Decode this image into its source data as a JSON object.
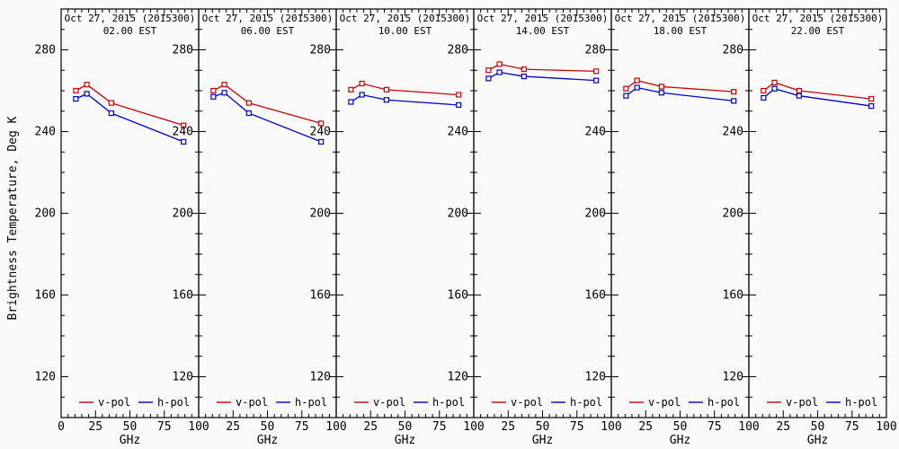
{
  "figure": {
    "background": "#fafafa",
    "axis_color": "#000000",
    "y_axis_title": "Brightness Temperature, Deg K",
    "x_axis_title": "GHz",
    "legend": {
      "position": "bottom-inside",
      "items": [
        {
          "name": "v-pol",
          "label": "v-pol",
          "color": "#cc0000"
        },
        {
          "name": "h-pol",
          "label": "h-pol",
          "color": "#0000cc"
        }
      ]
    }
  },
  "chart_data": [
    {
      "type": "line",
      "title": "Oct 27, 2015 (2015300)",
      "subtitle": "02.00 EST",
      "xlabel": "GHz",
      "ylabel": "Brightness Temperature, Deg K",
      "x": [
        10.7,
        18.7,
        36.5,
        89
      ],
      "xlim": [
        0,
        100
      ],
      "ylim": [
        100,
        300
      ],
      "xticks": [
        0,
        25,
        50,
        75,
        100
      ],
      "yticks": [
        120,
        160,
        200,
        240,
        280
      ],
      "grid": false,
      "series": [
        {
          "name": "v-pol",
          "color": "#cc0000",
          "marker": "open-square",
          "values": [
            260,
            263,
            254,
            243
          ]
        },
        {
          "name": "h-pol",
          "color": "#0000cc",
          "marker": "open-square",
          "values": [
            256,
            258.5,
            249,
            235
          ]
        }
      ]
    },
    {
      "type": "line",
      "title": "Oct 27, 2015 (2015300)",
      "subtitle": "06.00 EST",
      "xlabel": "GHz",
      "ylabel": "Brightness Temperature, Deg K",
      "x": [
        10.7,
        18.7,
        36.5,
        89
      ],
      "xlim": [
        0,
        100
      ],
      "ylim": [
        100,
        300
      ],
      "xticks": [
        0,
        25,
        50,
        75,
        100
      ],
      "yticks": [
        120,
        160,
        200,
        240,
        280
      ],
      "grid": false,
      "series": [
        {
          "name": "v-pol",
          "color": "#cc0000",
          "marker": "open-square",
          "values": [
            260,
            263,
            254,
            244
          ]
        },
        {
          "name": "h-pol",
          "color": "#0000cc",
          "marker": "open-square",
          "values": [
            257,
            259,
            249,
            235
          ]
        }
      ]
    },
    {
      "type": "line",
      "title": "Oct 27, 2015 (2015300)",
      "subtitle": "10.00 EST",
      "xlabel": "GHz",
      "ylabel": "Brightness Temperature, Deg K",
      "x": [
        10.7,
        18.7,
        36.5,
        89
      ],
      "xlim": [
        0,
        100
      ],
      "ylim": [
        100,
        300
      ],
      "xticks": [
        0,
        25,
        50,
        75,
        100
      ],
      "yticks": [
        120,
        160,
        200,
        240,
        280
      ],
      "grid": false,
      "series": [
        {
          "name": "v-pol",
          "color": "#cc0000",
          "marker": "open-square",
          "values": [
            260.5,
            263.5,
            260.5,
            258
          ]
        },
        {
          "name": "h-pol",
          "color": "#0000cc",
          "marker": "open-square",
          "values": [
            254.5,
            258,
            255.5,
            253
          ]
        }
      ]
    },
    {
      "type": "line",
      "title": "Oct 27, 2015 (2015300)",
      "subtitle": "14.00 EST",
      "xlabel": "GHz",
      "ylabel": "Brightness Temperature, Deg K",
      "x": [
        10.7,
        18.7,
        36.5,
        89
      ],
      "xlim": [
        0,
        100
      ],
      "ylim": [
        100,
        300
      ],
      "xticks": [
        0,
        25,
        50,
        75,
        100
      ],
      "yticks": [
        120,
        160,
        200,
        240,
        280
      ],
      "grid": false,
      "series": [
        {
          "name": "v-pol",
          "color": "#cc0000",
          "marker": "open-square",
          "values": [
            270,
            273,
            270.5,
            269.5
          ]
        },
        {
          "name": "h-pol",
          "color": "#0000cc",
          "marker": "open-square",
          "values": [
            266,
            269,
            267,
            265
          ]
        }
      ]
    },
    {
      "type": "line",
      "title": "Oct 27, 2015 (2015300)",
      "subtitle": "18.00 EST",
      "xlabel": "GHz",
      "ylabel": "Brightness Temperature, Deg K",
      "x": [
        10.7,
        18.7,
        36.5,
        89
      ],
      "xlim": [
        0,
        100
      ],
      "ylim": [
        100,
        300
      ],
      "xticks": [
        0,
        25,
        50,
        75,
        100
      ],
      "yticks": [
        120,
        160,
        200,
        240,
        280
      ],
      "grid": false,
      "series": [
        {
          "name": "v-pol",
          "color": "#cc0000",
          "marker": "open-square",
          "values": [
            261,
            265,
            262,
            259.5
          ]
        },
        {
          "name": "h-pol",
          "color": "#0000cc",
          "marker": "open-square",
          "values": [
            257.5,
            261.5,
            259,
            255
          ]
        }
      ]
    },
    {
      "type": "line",
      "title": "Oct 27, 2015 (2015300)",
      "subtitle": "22.00 EST",
      "xlabel": "GHz",
      "ylabel": "Brightness Temperature, Deg K",
      "x": [
        10.7,
        18.7,
        36.5,
        89
      ],
      "xlim": [
        0,
        100
      ],
      "ylim": [
        100,
        300
      ],
      "xticks": [
        0,
        25,
        50,
        75,
        100
      ],
      "yticks": [
        120,
        160,
        200,
        240,
        280
      ],
      "grid": false,
      "series": [
        {
          "name": "v-pol",
          "color": "#cc0000",
          "marker": "open-square",
          "values": [
            260,
            264,
            260,
            256
          ]
        },
        {
          "name": "h-pol",
          "color": "#0000cc",
          "marker": "open-square",
          "values": [
            256.5,
            261,
            257.5,
            252.5
          ]
        }
      ]
    }
  ]
}
